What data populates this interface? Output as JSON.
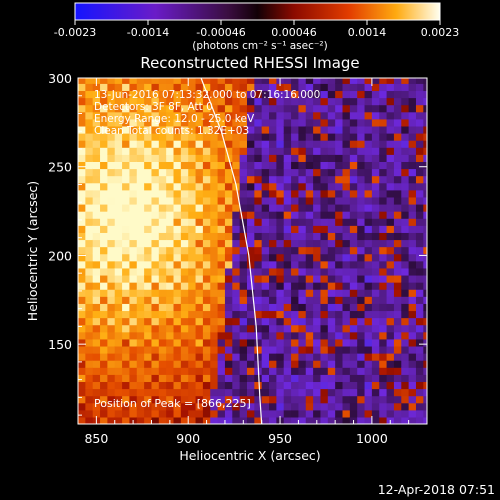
{
  "chart_data": {
    "type": "heatmap",
    "title": "Reconstructed RHESSI Image",
    "xlabel": "Heliocentric X (arcsec)",
    "ylabel": "Heliocentric Y (arcsec)",
    "xlim": [
      840,
      1030
    ],
    "ylim": [
      105,
      300
    ],
    "x_ticks": [
      850,
      900,
      950,
      1000
    ],
    "y_ticks": [
      150,
      200,
      250,
      300
    ],
    "colorbar": {
      "ticks": [
        "-0.0023",
        "-0.0014",
        "-0.00046",
        "0.00046",
        "0.0014",
        "0.0023"
      ],
      "range": [
        -0.0023,
        0.0023
      ],
      "unit_label": "(photons cm⁻² s⁻¹ asec⁻²)"
    },
    "annotations": [
      "13-Jun-2016 07:13:32.000 to 07:16:16.000",
      "Detectors: 3F 8F, Att 0",
      "Energy Range: 12.0 - 25.0 keV",
      "Clean    Total counts: 1.32E+03"
    ],
    "peak_label": "Position of Peak = [866,225]",
    "peak": {
      "x": 866,
      "y": 225
    },
    "limb": [
      [
        907,
        300
      ],
      [
        918,
        270
      ],
      [
        926,
        240
      ],
      [
        933,
        200
      ],
      [
        937,
        160
      ],
      [
        939,
        120
      ],
      [
        940,
        105
      ]
    ],
    "emission": {
      "core_center": [
        866,
        225
      ],
      "core_radius": 55,
      "extent_x_max": 935
    },
    "footer_date": "12-Apr-2018 07:51",
    "colors": {
      "limb": "#ffffff",
      "background": "#000000"
    }
  }
}
